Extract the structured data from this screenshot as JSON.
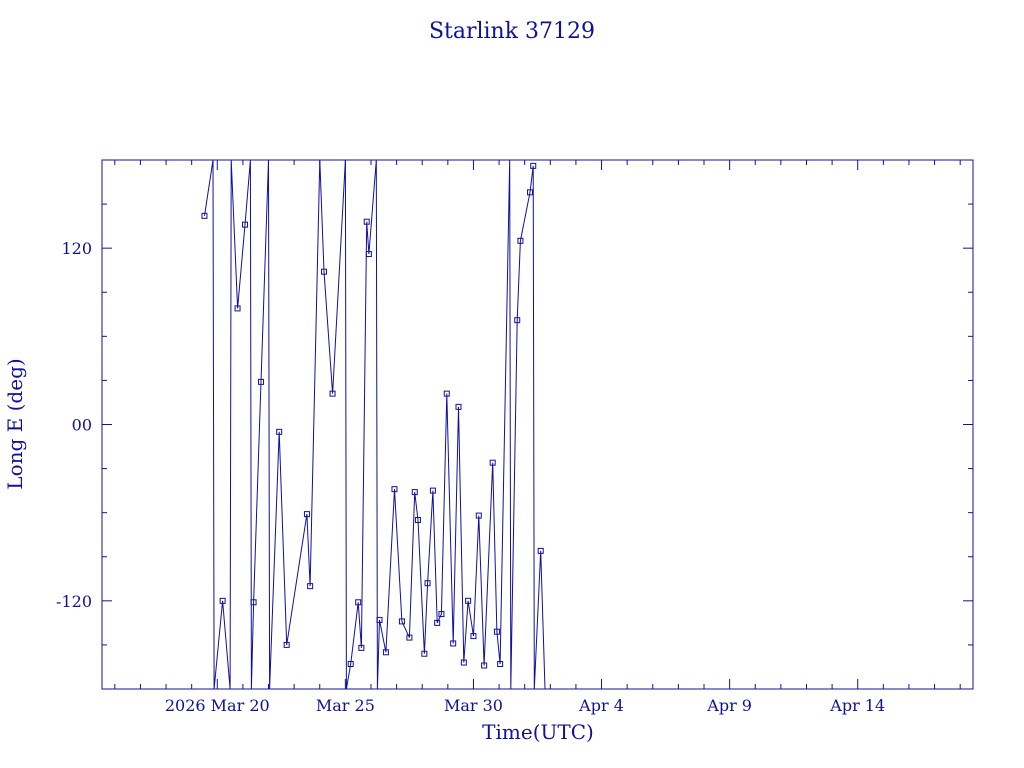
{
  "chart_data": {
    "type": "line",
    "title": "Starlink 37129",
    "xlabel": "Time(UTC)",
    "ylabel": "Long E (deg)",
    "x_unit": "days",
    "xlim": [
      "2026-03-15T12:00",
      "2026-04-18T12:00"
    ],
    "ylim": [
      -180,
      180
    ],
    "x_ticks": [
      {
        "date": "2026-03-20",
        "label": "2026 Mar 20"
      },
      {
        "date": "2026-03-25",
        "label": "Mar 25"
      },
      {
        "date": "2026-03-30",
        "label": "Mar 30"
      },
      {
        "date": "2026-04-04",
        "label": "Apr  4"
      },
      {
        "date": "2026-04-09",
        "label": "Apr  9"
      },
      {
        "date": "2026-04-14",
        "label": "Apr 14"
      }
    ],
    "y_ticks": [
      {
        "value": 120,
        "label": "120"
      },
      {
        "value": 0,
        "label": "00"
      },
      {
        "value": -120,
        "label": "-120"
      }
    ],
    "y_minor_step": 30,
    "x_minor_step_days": 1,
    "grid": false,
    "line_color": "#1010a0",
    "marker": "small-square",
    "series": [
      {
        "name": "",
        "points": [
          [
            "2026-03-19T12:00",
            142
          ],
          [
            "2026-03-19T20:00",
            180
          ],
          [
            "2026-03-19T21:00",
            -180
          ],
          [
            "2026-03-20T05:00",
            -120
          ],
          [
            "2026-03-20T12:00",
            -180
          ],
          [
            "2026-03-20T13:00",
            180
          ],
          [
            "2026-03-20T19:00",
            79
          ],
          [
            "2026-03-21T02:00",
            136
          ],
          [
            "2026-03-21T07:00",
            180
          ],
          [
            "2026-03-21T08:00",
            -180
          ],
          [
            "2026-03-21T10:00",
            -121
          ],
          [
            "2026-03-21T17:00",
            29
          ],
          [
            "2026-03-22T00:00",
            180
          ],
          [
            "2026-03-22T01:00",
            -180
          ],
          [
            "2026-03-22T10:00",
            -5
          ],
          [
            "2026-03-22T17:00",
            -150
          ],
          [
            "2026-03-23T12:00",
            -61
          ],
          [
            "2026-03-23T15:00",
            -110
          ],
          [
            "2026-03-24T00:00",
            180
          ],
          [
            "2026-03-24T04:00",
            104
          ],
          [
            "2026-03-24T12:00",
            21
          ],
          [
            "2026-03-25T00:00",
            180
          ],
          [
            "2026-03-25T01:00",
            -180
          ],
          [
            "2026-03-25T05:00",
            -163
          ],
          [
            "2026-03-25T12:00",
            -121
          ],
          [
            "2026-03-25T15:00",
            -152
          ],
          [
            "2026-03-25T20:00",
            138
          ],
          [
            "2026-03-25T22:00",
            116
          ],
          [
            "2026-03-26T05:00",
            180
          ],
          [
            "2026-03-26T06:00",
            -180
          ],
          [
            "2026-03-26T08:00",
            -133
          ],
          [
            "2026-03-26T14:00",
            -155
          ],
          [
            "2026-03-26T22:00",
            -44
          ],
          [
            "2026-03-27T05:00",
            -134
          ],
          [
            "2026-03-27T12:00",
            -145
          ],
          [
            "2026-03-27T17:00",
            -46
          ],
          [
            "2026-03-27T20:00",
            -65
          ],
          [
            "2026-03-28T02:00",
            -156
          ],
          [
            "2026-03-28T05:00",
            -108
          ],
          [
            "2026-03-28T10:00",
            -45
          ],
          [
            "2026-03-28T14:00",
            -135
          ],
          [
            "2026-03-28T18:00",
            -129
          ],
          [
            "2026-03-28T23:00",
            21
          ],
          [
            "2026-03-29T05:00",
            -149
          ],
          [
            "2026-03-29T10:00",
            12
          ],
          [
            "2026-03-29T15:00",
            -162
          ],
          [
            "2026-03-29T19:00",
            -120
          ],
          [
            "2026-03-30T00:00",
            -144
          ],
          [
            "2026-03-30T05:00",
            -62
          ],
          [
            "2026-03-30T10:00",
            -164
          ],
          [
            "2026-03-30T18:00",
            -26
          ],
          [
            "2026-03-30T22:00",
            -141
          ],
          [
            "2026-03-31T01:00",
            -163
          ],
          [
            "2026-03-31T10:00",
            180
          ],
          [
            "2026-03-31T11:00",
            -180
          ],
          [
            "2026-03-31T17:00",
            71
          ],
          [
            "2026-03-31T20:00",
            125
          ],
          [
            "2026-04-01T05:00",
            158
          ],
          [
            "2026-04-01T08:00",
            176
          ],
          [
            "2026-04-01T09:00",
            -180
          ],
          [
            "2026-04-01T15:00",
            -86
          ],
          [
            "2026-04-01T19:00",
            -180
          ]
        ]
      }
    ]
  }
}
